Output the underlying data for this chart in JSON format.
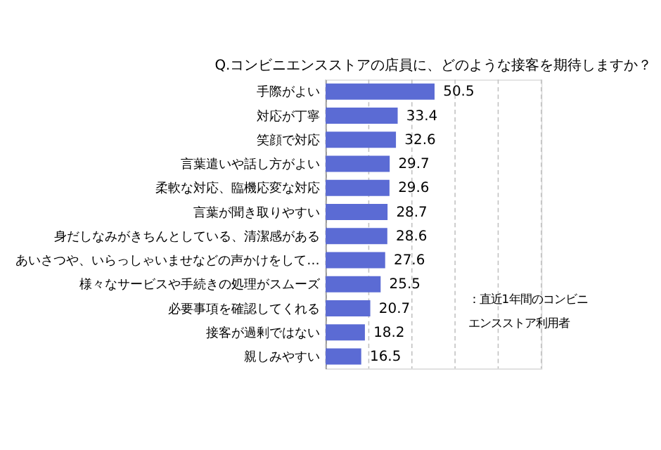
{
  "chart_data": {
    "type": "bar",
    "orientation": "horizontal",
    "title": "Q.コンビニエンスストアの店員に、どのような接客を期待しますか？",
    "categories": [
      "手際がよい",
      "対応が丁寧",
      "笑顔で対応",
      "言葉遣いや話し方がよい",
      "柔軟な対応、臨機応変な対応",
      "言葉が聞き取りやすい",
      "身だしなみがきちんとしている、清潔感がある",
      "あいさつや、いらっしゃいませなどの声かけをして…",
      "様々なサービスや手続きの処理がスムーズ",
      "必要事項を確認してくれる",
      "接客が過剰ではない",
      "親しみやすい"
    ],
    "values": [
      50.5,
      33.4,
      32.6,
      29.7,
      29.6,
      28.7,
      28.6,
      27.6,
      25.5,
      20.7,
      18.2,
      16.5
    ],
    "color": "#5b6bd4",
    "data_labels": true,
    "xlim": [
      0,
      100
    ],
    "xticks": [
      {
        "value": 0,
        "label": null
      },
      {
        "value": 20,
        "label": null
      },
      {
        "value": 40,
        "label": null
      },
      {
        "value": 60,
        "label": null
      },
      {
        "value": 80,
        "label": null
      },
      {
        "value": 100,
        "label": null
      }
    ],
    "grid": "x",
    "tick_labels": "y",
    "annotations": [
      "：直近1年間のコンビニエンスストア利用者"
    ]
  }
}
